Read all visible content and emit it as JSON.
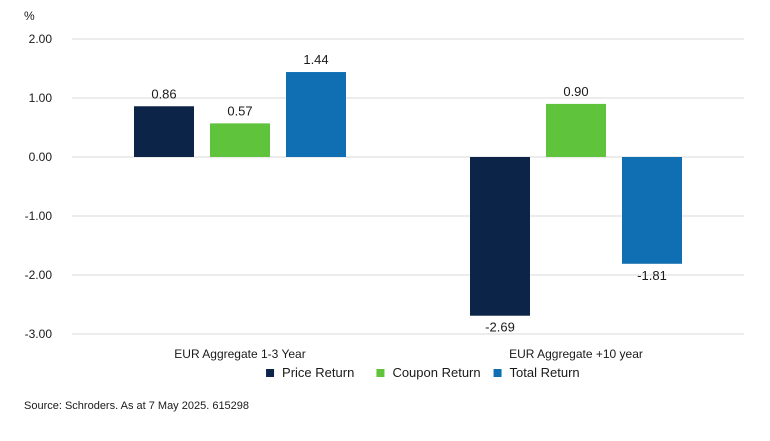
{
  "chart_data": {
    "type": "bar",
    "unit_label": "%",
    "categories": [
      "EUR Aggregate 1-3 Year",
      "EUR Aggregate +10 year"
    ],
    "series": [
      {
        "name": "Price Return",
        "color": "#0b2447",
        "values": [
          0.86,
          -2.69
        ],
        "labels": [
          "0.86",
          "-2.69"
        ]
      },
      {
        "name": "Coupon Return",
        "color": "#5fc33b",
        "values": [
          0.57,
          0.9
        ],
        "labels": [
          "0.57",
          "0.90"
        ]
      },
      {
        "name": "Total Return",
        "color": "#0f6fb2",
        "values": [
          1.44,
          -1.81
        ],
        "labels": [
          "1.44",
          "-1.81"
        ]
      }
    ],
    "ylim": [
      -3,
      2
    ],
    "yticks": [
      2,
      1,
      0,
      -1,
      -2,
      -3
    ],
    "ytick_labels": [
      "2.00",
      "1.00",
      "0.00",
      "-1.00",
      "-2.00",
      "-3.00"
    ],
    "grid": true,
    "legend_position": "bottom-center"
  },
  "source": "Source: Schroders. As at 7 May 2025. 615298"
}
